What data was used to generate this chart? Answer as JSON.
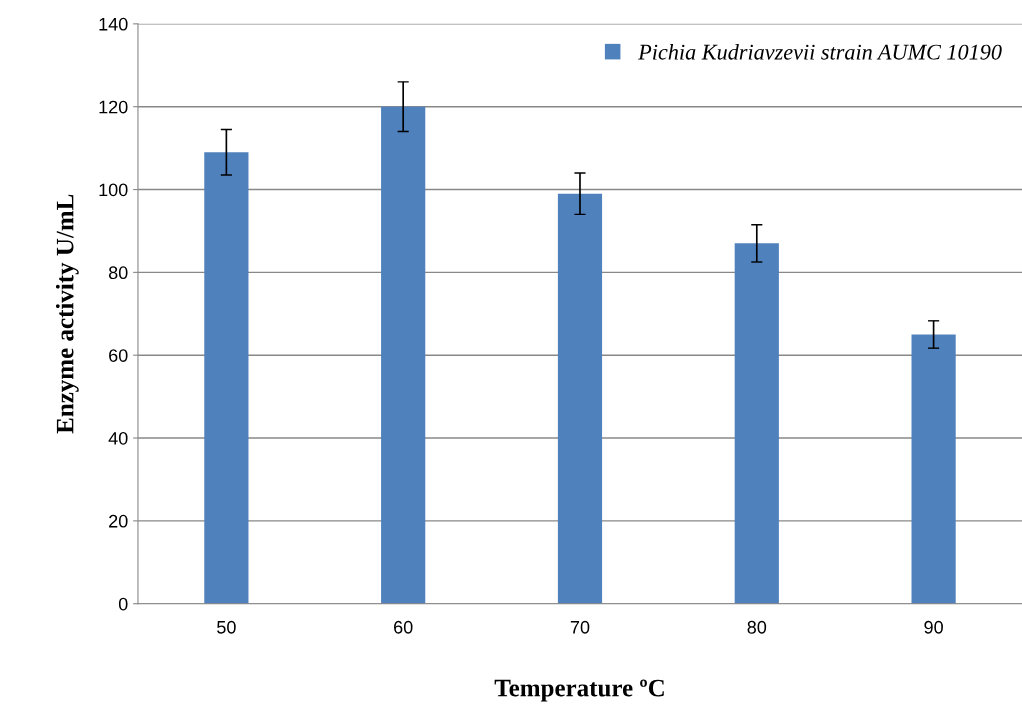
{
  "chart_data": {
    "type": "bar",
    "xlabel": "Temperature ºC",
    "ylabel": "Enzyme activity U/mL",
    "categories": [
      "50",
      "60",
      "70",
      "80",
      "90"
    ],
    "series": [
      {
        "name": "Pichia Kudriavzevii strain AUMC 10190",
        "color": "#4f81bd",
        "values": [
          109,
          120,
          99,
          87,
          65
        ],
        "errors": [
          5.5,
          6,
          5,
          4.5,
          3.3
        ]
      }
    ],
    "ylim": [
      0,
      140
    ],
    "yticks": [
      0,
      20,
      40,
      60,
      80,
      100,
      120,
      140
    ],
    "grid": "y",
    "legend": "top right"
  }
}
